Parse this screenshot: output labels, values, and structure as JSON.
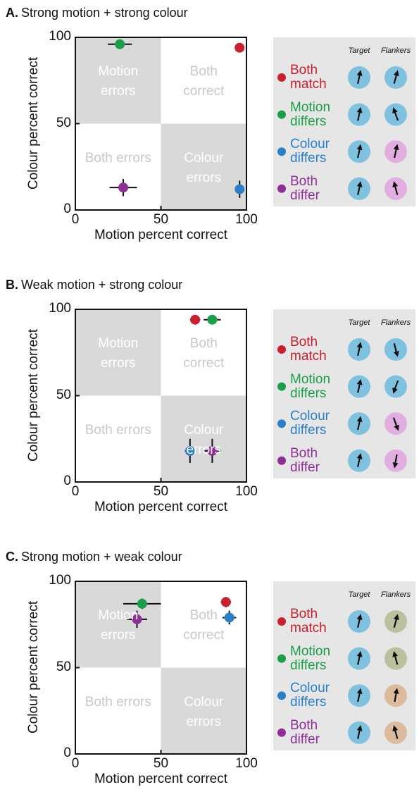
{
  "chart_data": [
    {
      "type": "scatter",
      "panel_label": "A.",
      "title": "Strong motion + strong colour",
      "x_label": "Motion percent correct",
      "y_label": "Colour percent correct",
      "xlim": [
        0,
        100
      ],
      "ylim": [
        0,
        100
      ],
      "xticks": [
        0,
        50,
        100
      ],
      "yticks": [
        0,
        50,
        100
      ],
      "quadrant_labels": [
        "Motion errors",
        "Both correct",
        "Both errors",
        "Colour errors"
      ],
      "legend_columns": [
        "Target",
        "Flankers"
      ],
      "series": [
        {
          "name": "Both match",
          "color": "#c8202f",
          "x": [
            96
          ],
          "y": [
            94
          ],
          "xerr": [
            0
          ],
          "yerr": [
            0
          ]
        },
        {
          "name": "Motion differs",
          "color": "#1a9e4a",
          "x": [
            26
          ],
          "y": [
            96
          ],
          "xerr": [
            7
          ],
          "yerr": [
            0
          ]
        },
        {
          "name": "Colour differs",
          "color": "#2b7fc6",
          "x": [
            96
          ],
          "y": [
            12
          ],
          "xerr": [
            0
          ],
          "yerr": [
            5
          ]
        },
        {
          "name": "Both differ",
          "color": "#8e2f95",
          "x": [
            28
          ],
          "y": [
            13
          ],
          "xerr": [
            8
          ],
          "yerr": [
            5
          ]
        }
      ]
    },
    {
      "type": "scatter",
      "panel_label": "B.",
      "title": "Weak motion + strong colour",
      "x_label": "Motion percent correct",
      "y_label": "Colour percent correct",
      "xlim": [
        0,
        100
      ],
      "ylim": [
        0,
        100
      ],
      "xticks": [
        0,
        50,
        100
      ],
      "yticks": [
        0,
        50,
        100
      ],
      "quadrant_labels": [
        "Motion errors",
        "Both correct",
        "Both errors",
        "Colour errors"
      ],
      "legend_columns": [
        "Target",
        "Flankers"
      ],
      "series": [
        {
          "name": "Both match",
          "color": "#c8202f",
          "x": [
            70
          ],
          "y": [
            94
          ],
          "xerr": [
            3
          ],
          "yerr": [
            0
          ]
        },
        {
          "name": "Motion differs",
          "color": "#1a9e4a",
          "x": [
            80
          ],
          "y": [
            94
          ],
          "xerr": [
            5
          ],
          "yerr": [
            0
          ]
        },
        {
          "name": "Colour differs",
          "color": "#2b7fc6",
          "x": [
            67
          ],
          "y": [
            18
          ],
          "xerr": [
            3
          ],
          "yerr": [
            7
          ]
        },
        {
          "name": "Both differ",
          "color": "#8e2f95",
          "x": [
            80
          ],
          "y": [
            18
          ],
          "xerr": [
            5
          ],
          "yerr": [
            7
          ]
        }
      ]
    },
    {
      "type": "scatter",
      "panel_label": "C.",
      "title": "Strong motion + weak colour",
      "x_label": "Motion percent correct",
      "y_label": "Colour percent correct",
      "xlim": [
        0,
        100
      ],
      "ylim": [
        0,
        100
      ],
      "xticks": [
        0,
        50,
        100
      ],
      "yticks": [
        0,
        50,
        100
      ],
      "quadrant_labels": [
        "Motion errors",
        "Both correct",
        "Both errors",
        "Colour errors"
      ],
      "legend_columns": [
        "Target",
        "Flankers"
      ],
      "series": [
        {
          "name": "Both match",
          "color": "#c8202f",
          "x": [
            88
          ],
          "y": [
            88
          ],
          "xerr": [
            3
          ],
          "yerr": [
            3
          ]
        },
        {
          "name": "Motion differs",
          "color": "#1a9e4a",
          "x": [
            39
          ],
          "y": [
            87
          ],
          "xerr": [
            11
          ],
          "yerr": [
            3
          ]
        },
        {
          "name": "Colour differs",
          "color": "#2b7fc6",
          "x": [
            90
          ],
          "y": [
            79
          ],
          "xerr": [
            4
          ],
          "yerr": [
            4
          ]
        },
        {
          "name": "Both differ",
          "color": "#8e2f95",
          "x": [
            36
          ],
          "y": [
            78
          ],
          "xerr": [
            6
          ],
          "yerr": [
            5
          ]
        }
      ]
    }
  ]
}
